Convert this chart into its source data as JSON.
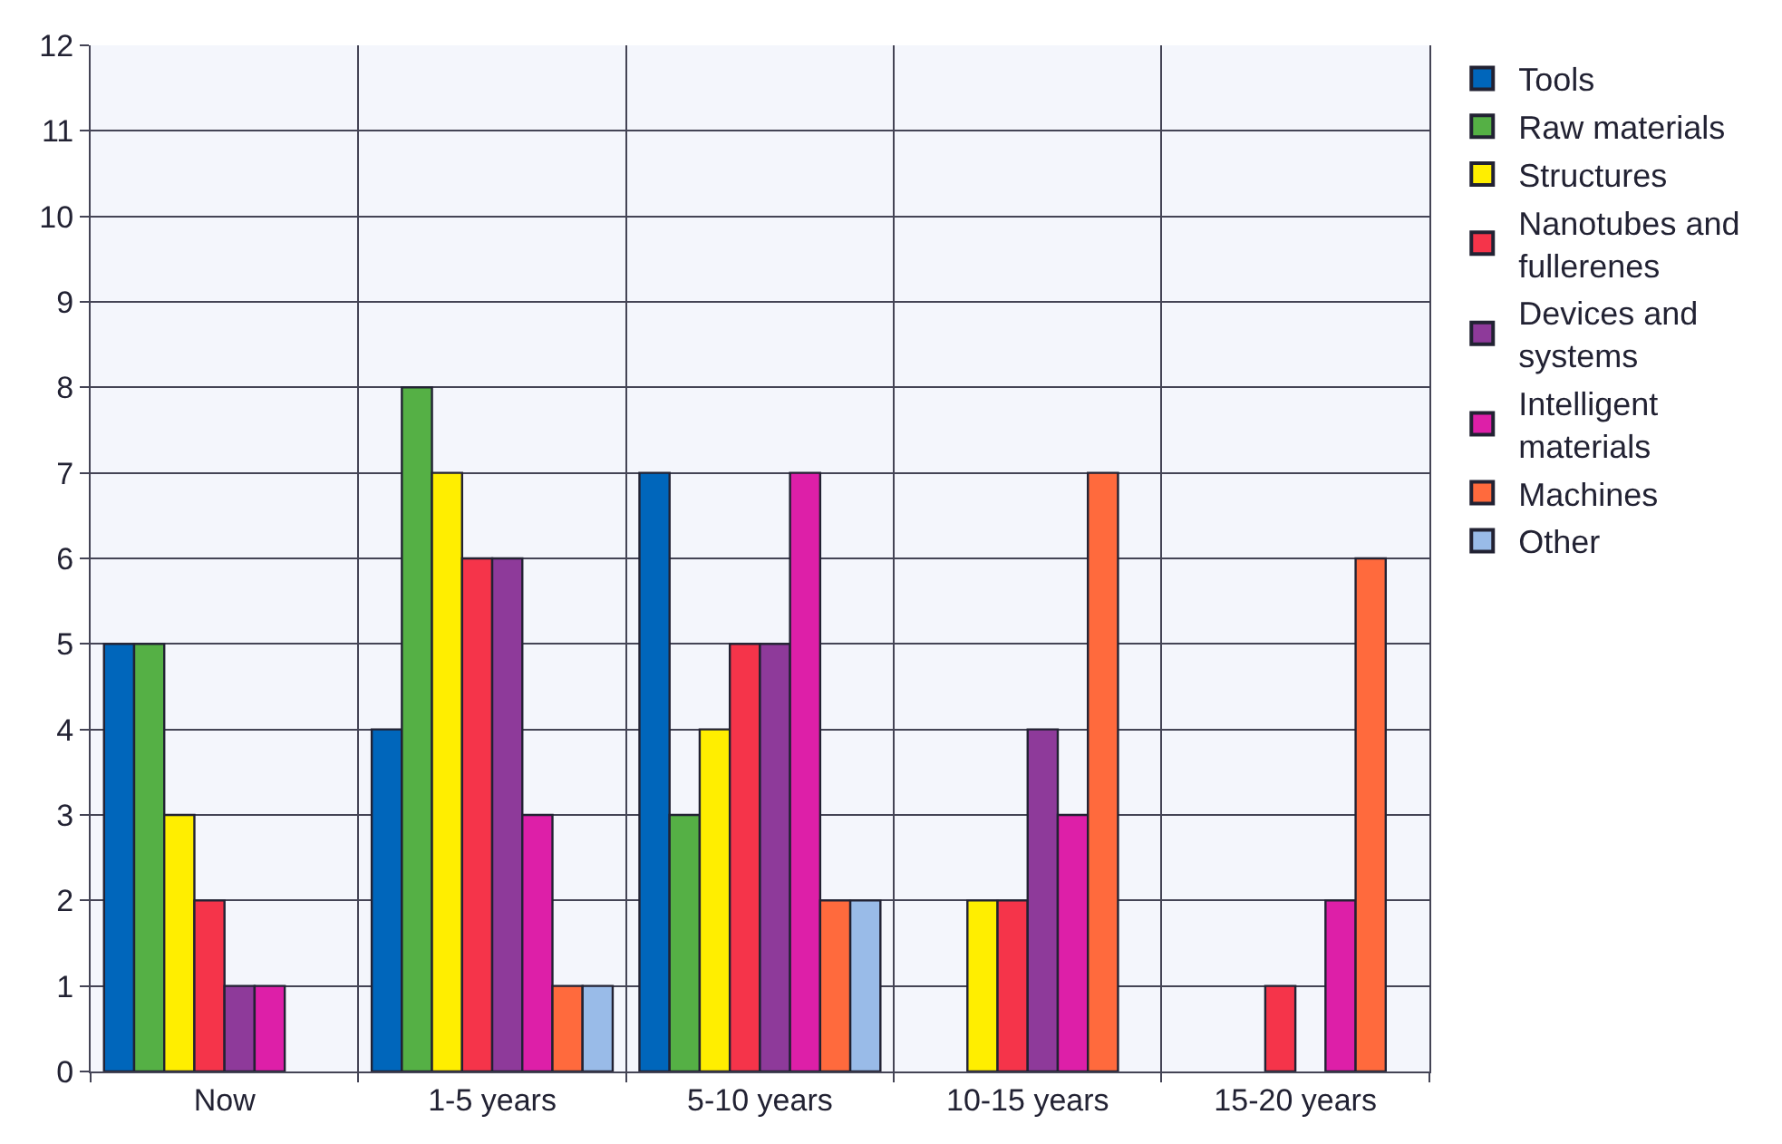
{
  "chart_data": {
    "type": "bar",
    "categories": [
      "Now",
      "1-5 years",
      "5-10 years",
      "10-15 years",
      "15-20 years"
    ],
    "series": [
      {
        "name": "Tools",
        "color": "#0066bb",
        "values": [
          5,
          4,
          7,
          null,
          null
        ]
      },
      {
        "name": "Raw materials",
        "color": "#55b045",
        "values": [
          5,
          8,
          3,
          null,
          null
        ]
      },
      {
        "name": "Structures",
        "color": "#ffee00",
        "values": [
          3,
          7,
          4,
          2,
          null
        ]
      },
      {
        "name": "Nanotubes and fullerenes",
        "color": "#f5344a",
        "values": [
          2,
          6,
          5,
          2,
          1
        ]
      },
      {
        "name": "Devices and systems",
        "color": "#8e3a9a",
        "values": [
          1,
          6,
          5,
          4,
          null
        ]
      },
      {
        "name": "Intelligent materials",
        "color": "#dd1fa8",
        "values": [
          1,
          3,
          7,
          3,
          2
        ]
      },
      {
        "name": "Machines",
        "color": "#ff6a3d",
        "values": [
          null,
          1,
          2,
          7,
          6
        ]
      },
      {
        "name": "Other",
        "color": "#99bbe8",
        "values": [
          null,
          1,
          2,
          null,
          null
        ]
      }
    ],
    "ylim": [
      0,
      12
    ],
    "yticks": [
      0,
      1,
      2,
      3,
      4,
      5,
      6,
      7,
      8,
      9,
      10,
      11,
      12
    ],
    "grid": true,
    "legend": "right"
  }
}
